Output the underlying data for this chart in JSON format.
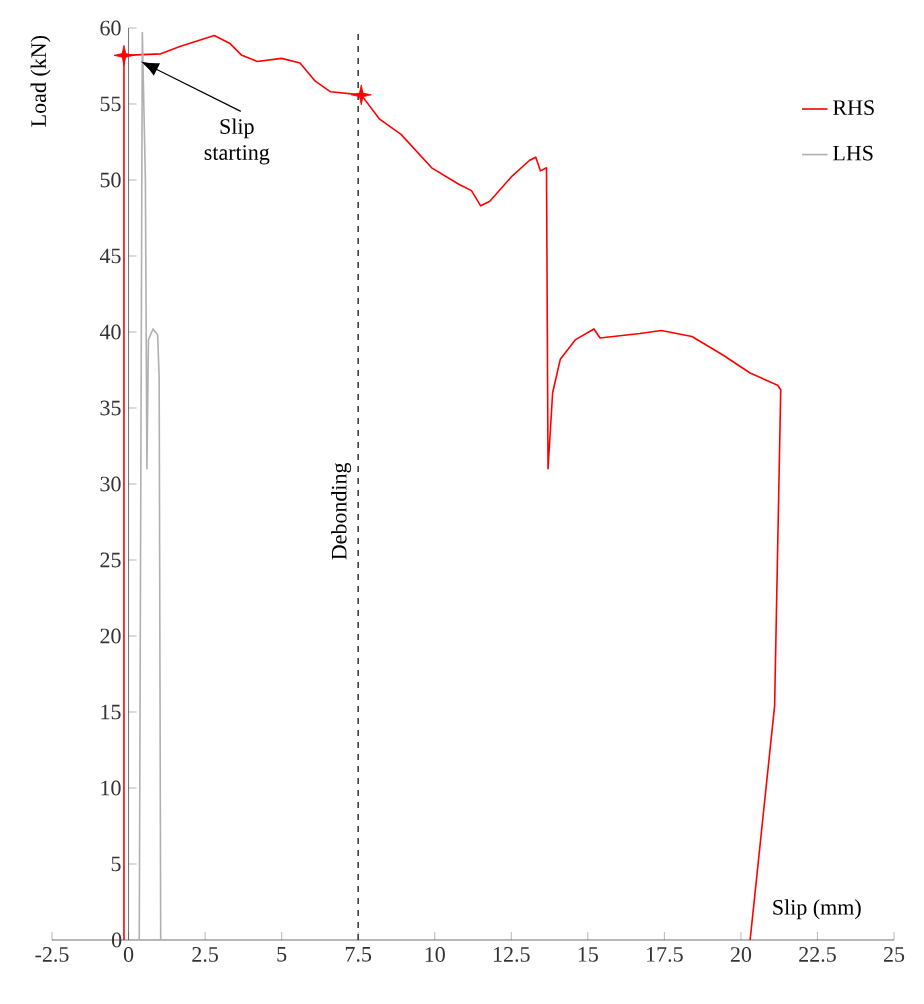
{
  "chart_data": {
    "type": "line",
    "xlabel": "Slip (mm)",
    "ylabel": "Load (kN)",
    "xlim": [
      -2.5,
      25
    ],
    "ylim": [
      0,
      60
    ],
    "xticks": [
      -2.5,
      0,
      2.5,
      5,
      7.5,
      10,
      12.5,
      15,
      17.5,
      20,
      22.5,
      25
    ],
    "yticks": [
      0,
      5,
      10,
      15,
      20,
      25,
      30,
      35,
      40,
      45,
      50,
      55,
      60
    ],
    "grid": false,
    "legend": "top right",
    "marker": "none",
    "line_style": "solid",
    "series": [
      {
        "name": "RHS",
        "color": "#ff0000",
        "x": [
          -0.15,
          -0.15,
          1.05,
          1.7,
          2.8,
          3.3,
          3.7,
          4.2,
          5,
          5.6,
          6.1,
          6.6,
          7.6,
          8.2,
          8.9,
          9.9,
          10.8,
          11.2,
          11.5,
          11.8,
          12.5,
          13.1,
          13.3,
          13.45,
          13.65,
          13.7,
          13.85,
          14.1,
          14.6,
          15.2,
          15.4,
          16.7,
          17.4,
          18.4,
          19.4,
          20.3,
          21.2,
          21.3,
          21.1,
          20.3
        ],
        "values": [
          0,
          58.2,
          58.3,
          58.8,
          59.5,
          59,
          58.2,
          57.8,
          58,
          57.7,
          56.5,
          55.8,
          55.6,
          54,
          53,
          50.8,
          49.7,
          49.3,
          48.3,
          48.6,
          50.2,
          51.3,
          51.5,
          50.6,
          50.8,
          31,
          36,
          38.2,
          39.5,
          40.2,
          39.6,
          39.9,
          40.1,
          39.7,
          38.5,
          37.3,
          36.5,
          36.2,
          15.4,
          0
        ]
      },
      {
        "name": "LHS",
        "color": "#b0b0b0",
        "x": [
          0.35,
          0.45,
          0.55,
          0.6,
          0.65,
          0.8,
          0.95,
          1.0,
          1.05
        ],
        "values": [
          0,
          59.7,
          50,
          31,
          39.5,
          40.2,
          39.8,
          37,
          0
        ]
      },
      {
        "type": "scatter",
        "marker": "star",
        "color": "#ff0000",
        "x": [
          -0.15,
          7.6
        ],
        "values": [
          58.2,
          55.6
        ]
      }
    ],
    "ref_lines": [
      {
        "axis": "x",
        "value": 7.5,
        "label": "Debonding",
        "line_style": "dashed",
        "color": "#404040"
      }
    ],
    "annotations": [
      {
        "text": "Slip starting",
        "x": 0.4,
        "y": 57.8
      }
    ]
  }
}
